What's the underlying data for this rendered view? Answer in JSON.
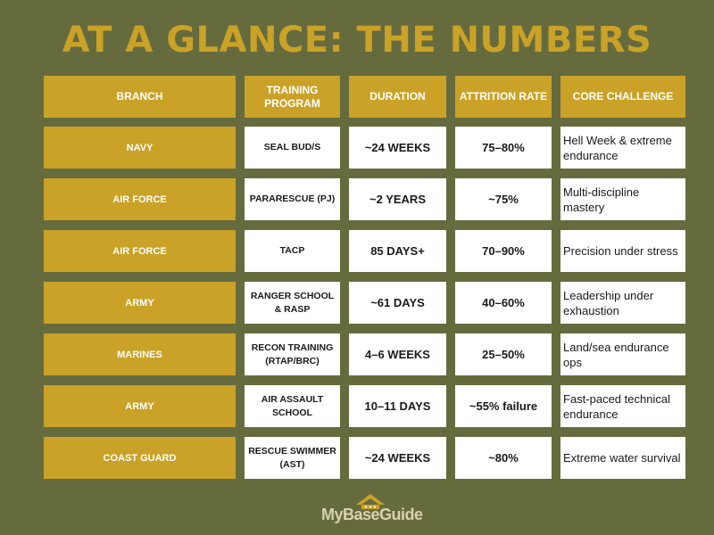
{
  "title": "AT A GLANCE: THE NUMBERS",
  "headers": [
    "BRANCH",
    "TRAINING\nPROGRAM",
    "DURATION",
    "ATTRITION RATE",
    "CORE CHALLENGE"
  ],
  "rows": [
    {
      "branch": "NAVY",
      "program": "SEAL BUD/S",
      "duration": "~24 WEEKS",
      "attrition": "75–80%",
      "challenge": "Hell Week & extreme endurance"
    },
    {
      "branch": "AIR FORCE",
      "program": "PARARESCUE (PJ)",
      "duration": "~2 YEARS",
      "attrition": "~75%",
      "challenge": "Multi-discipline mastery"
    },
    {
      "branch": "AIR FORCE",
      "program": "TACP",
      "duration": "85 DAYS+",
      "attrition": "70–90%",
      "challenge": "Precision under stress"
    },
    {
      "branch": "ARMY",
      "program": "RANGER SCHOOL & RASP",
      "duration": "~61 DAYS",
      "attrition": "40–60%",
      "challenge": "Leadership under exhaustion"
    },
    {
      "branch": "MARINES",
      "program": "RECON TRAINING (RTAP/BRC)",
      "duration": "4–6 WEEKS",
      "attrition": "25–50%",
      "challenge": "Land/sea endurance ops"
    },
    {
      "branch": "ARMY",
      "program": "AIR ASSAULT SCHOOL",
      "duration": "10–11 DAYS",
      "attrition": "~55% failure",
      "challenge": "Fast-paced technical endurance"
    },
    {
      "branch": "COAST GUARD",
      "program": "RESCUE SWIMMER (AST)",
      "duration": "~24 WEEKS",
      "attrition": "~80%",
      "challenge": "Extreme water survival"
    }
  ],
  "logo": {
    "text": "MyBaseGuide",
    "icon": "house-roof-stars-icon"
  },
  "colors": {
    "background": "#666b3e",
    "accent": "#c9a227",
    "cell": "#ffffff"
  }
}
